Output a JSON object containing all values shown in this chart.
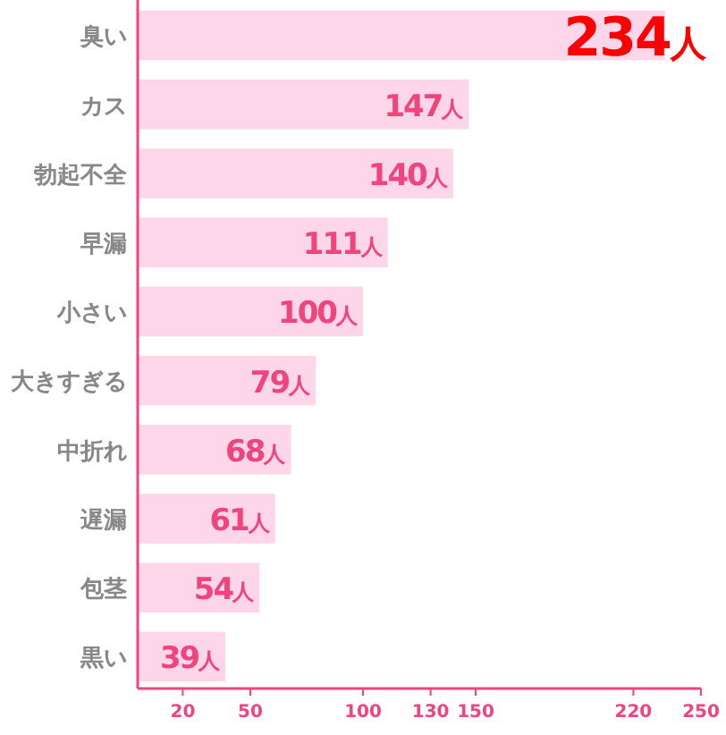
{
  "chart_data": {
    "type": "bar",
    "orientation": "horizontal",
    "categories": [
      "臭い",
      "カス",
      "勃起不全",
      "早漏",
      "小さい",
      "大きすぎる",
      "中折れ",
      "遅漏",
      "包茎",
      "黒い"
    ],
    "values": [
      234,
      147,
      140,
      111,
      100,
      79,
      68,
      61,
      54,
      39
    ],
    "value_labels": [
      "234人",
      "147人",
      "140人",
      "111人",
      "100人",
      "79人",
      "68人",
      "61人",
      "54人",
      "39人"
    ],
    "color": "#fdd6ea",
    "xlim": [
      0,
      250
    ],
    "xticks": [
      20,
      50,
      100,
      130,
      150,
      220,
      250
    ],
    "grid": false
  }
}
